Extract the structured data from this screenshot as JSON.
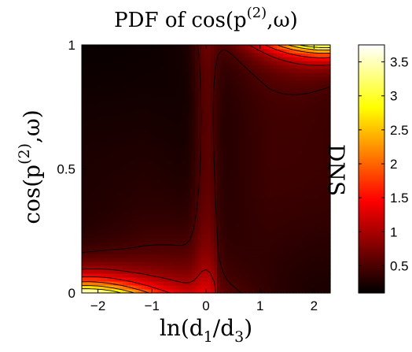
{
  "chart_data": {
    "type": "heatmap",
    "title": {
      "text": "PDF of cos(p",
      "superscript": "(2)",
      "suffix": ",ω)"
    },
    "xlabel": {
      "prefix": "ln(d",
      "sub1": "1",
      "middle": "/d",
      "sub2": "3",
      "suffix": ")"
    },
    "ylabel": {
      "text": "cos(p",
      "superscript": "(2)",
      "suffix": ",ω)"
    },
    "xlim": [
      -2.3,
      2.3
    ],
    "ylim": [
      0,
      1
    ],
    "x_ticks": [
      {
        "value": -2,
        "label": "−2"
      },
      {
        "value": -1,
        "label": "−1"
      },
      {
        "value": 0,
        "label": "0"
      },
      {
        "value": 1,
        "label": "1"
      },
      {
        "value": 2,
        "label": "2"
      }
    ],
    "y_ticks": [
      {
        "value": 0,
        "label": "0"
      },
      {
        "value": 0.5,
        "label": "0.5"
      },
      {
        "value": 1,
        "label": "1"
      }
    ],
    "colorbar": {
      "label": "DNS",
      "colormap": "hot",
      "range": [
        0.1,
        3.75
      ],
      "ticks": [
        {
          "value": 0.5,
          "label": "0.5"
        },
        {
          "value": 1,
          "label": "1"
        },
        {
          "value": 1.5,
          "label": "1.5"
        },
        {
          "value": 2,
          "label": "2"
        },
        {
          "value": 2.5,
          "label": "2.5"
        },
        {
          "value": 3,
          "label": "3"
        },
        {
          "value": 3.5,
          "label": "3.5"
        }
      ]
    },
    "hotspots": [
      {
        "region": "bottom-left",
        "x": -2.3,
        "y": 0.0,
        "peak_value": 3.7
      },
      {
        "region": "top-right",
        "x": 2.3,
        "y": 1.0,
        "peak_value": 3.2
      }
    ],
    "contour_levels": [
      0.5,
      1.0,
      1.5,
      2.0,
      2.5,
      3.0
    ],
    "grid": false
  }
}
